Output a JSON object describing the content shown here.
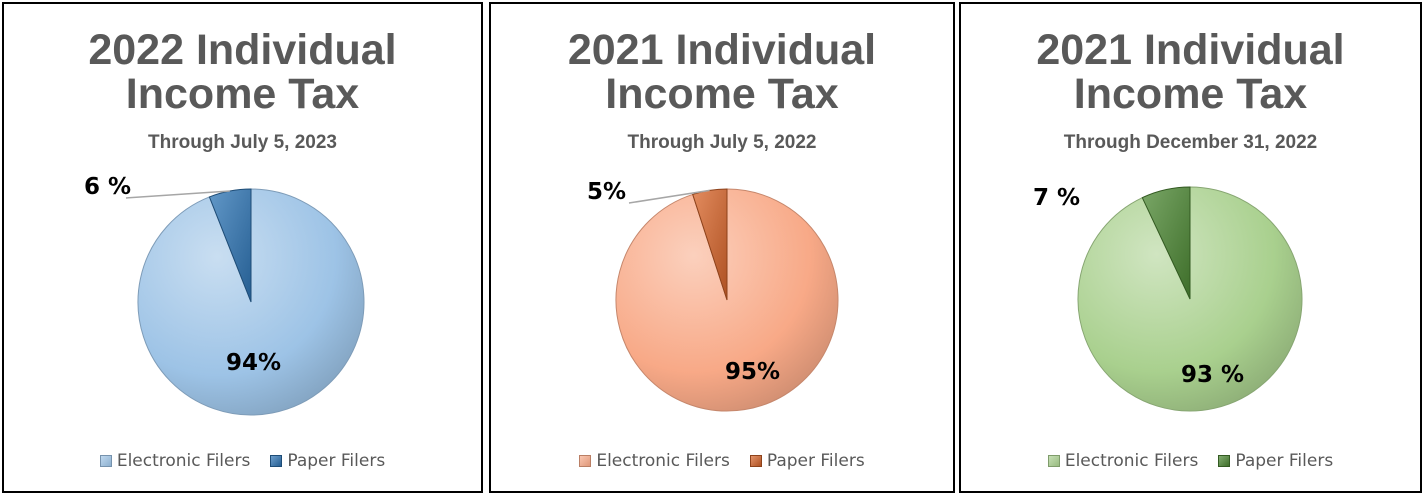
{
  "chart_data": [
    {
      "type": "pie",
      "title_line1": "2022 Individual",
      "title_line2": "Income Tax",
      "subtitle": "Through July 5, 2023",
      "slices": [
        {
          "label": "Electronic Filers",
          "value": 94,
          "data_label": "94%"
        },
        {
          "label": "Paper Filers",
          "value": 6,
          "data_label": "6 %"
        }
      ],
      "colors": {
        "electronic": "#9dc3e6",
        "paper": "#2e75b6"
      },
      "legend_position": "bottom"
    },
    {
      "type": "pie",
      "title_line1": "2021 Individual",
      "title_line2": "Income Tax",
      "subtitle": "Through July 5, 2022",
      "slices": [
        {
          "label": "Electronic Filers",
          "value": 95,
          "data_label": "95%"
        },
        {
          "label": "Paper Filers",
          "value": 5,
          "data_label": "5%"
        }
      ],
      "colors": {
        "electronic": "#f8a987",
        "paper": "#d9652a"
      },
      "legend_position": "bottom"
    },
    {
      "type": "pie",
      "title_line1": "2021 Individual",
      "title_line2": "Income Tax",
      "subtitle": "Through December 31, 2022",
      "slices": [
        {
          "label": "Electronic Filers",
          "value": 93,
          "data_label": "93 %"
        },
        {
          "label": "Paper Filers",
          "value": 7,
          "data_label": "7 %"
        }
      ],
      "colors": {
        "electronic": "#a9d08e",
        "paper": "#4e8a34"
      },
      "legend_position": "bottom"
    }
  ]
}
